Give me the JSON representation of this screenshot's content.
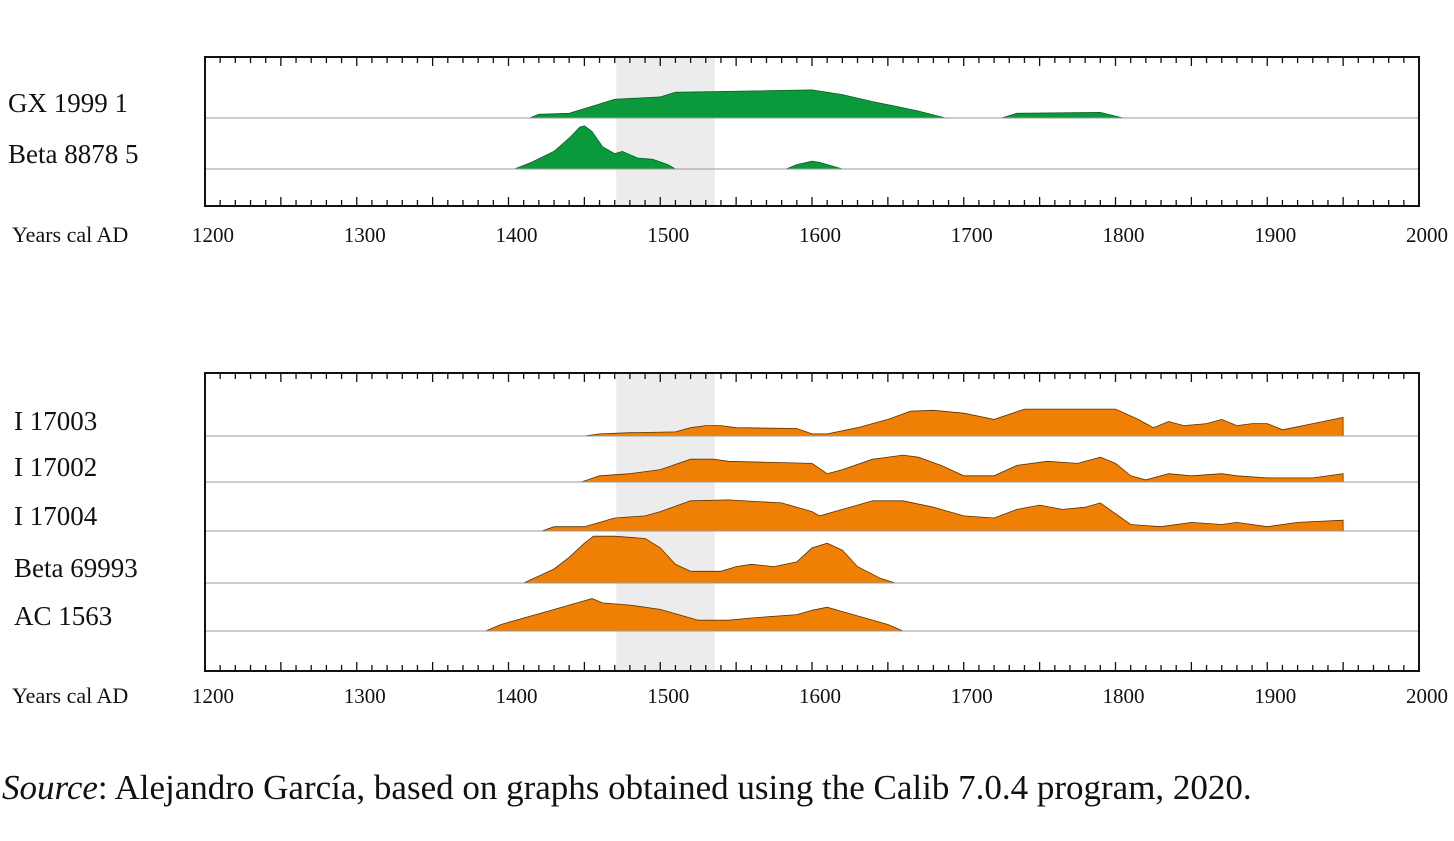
{
  "chart_data": [
    {
      "type": "area",
      "xlabel": "Years cal AD",
      "xlim": [
        1200,
        2000
      ],
      "x_ticks": [
        "1200",
        "1300",
        "1400",
        "1500",
        "1600",
        "1700",
        "1800",
        "1900",
        "2000"
      ],
      "highlight_range": [
        1471,
        1536
      ],
      "colors": {
        "fill": "#0a9a3c",
        "stroke": "#0b5e24",
        "highlight": "#ececec"
      },
      "series": [
        {
          "name": "GX 1999 1",
          "points": [
            [
              1414,
              0.0
            ],
            [
              1420,
              0.08
            ],
            [
              1440,
              0.1
            ],
            [
              1460,
              0.3
            ],
            [
              1470,
              0.4
            ],
            [
              1500,
              0.45
            ],
            [
              1510,
              0.55
            ],
            [
              1600,
              0.6
            ],
            [
              1620,
              0.5
            ],
            [
              1640,
              0.35
            ],
            [
              1670,
              0.15
            ],
            [
              1688,
              0.0
            ],
            [
              1700,
              0.0
            ],
            [
              1725,
              0.0
            ],
            [
              1735,
              0.1
            ],
            [
              1790,
              0.12
            ],
            [
              1805,
              0.0
            ]
          ]
        },
        {
          "name": "Beta 8878  5",
          "points": [
            [
              1404,
              0.0
            ],
            [
              1415,
              0.15
            ],
            [
              1430,
              0.4
            ],
            [
              1440,
              0.7
            ],
            [
              1447,
              0.95
            ],
            [
              1450,
              0.98
            ],
            [
              1455,
              0.85
            ],
            [
              1462,
              0.5
            ],
            [
              1470,
              0.35
            ],
            [
              1475,
              0.4
            ],
            [
              1485,
              0.25
            ],
            [
              1495,
              0.22
            ],
            [
              1505,
              0.1
            ],
            [
              1510,
              0.0
            ],
            [
              1583,
              0.0
            ],
            [
              1590,
              0.1
            ],
            [
              1600,
              0.18
            ],
            [
              1605,
              0.15
            ],
            [
              1620,
              0.0
            ]
          ]
        }
      ]
    },
    {
      "type": "area",
      "xlabel": "Years cal AD",
      "xlim": [
        1200,
        2000
      ],
      "x_ticks": [
        "1200",
        "1300",
        "1400",
        "1500",
        "1600",
        "1700",
        "1800",
        "1900",
        "2000"
      ],
      "highlight_range": [
        1471,
        1536
      ],
      "colors": {
        "fill": "#f07f05",
        "stroke": "#5a3203",
        "highlight": "#ececec"
      },
      "series": [
        {
          "name": "I 17003",
          "points": [
            [
              1450,
              0.0
            ],
            [
              1460,
              0.05
            ],
            [
              1480,
              0.08
            ],
            [
              1510,
              0.1
            ],
            [
              1520,
              0.2
            ],
            [
              1530,
              0.25
            ],
            [
              1540,
              0.25
            ],
            [
              1550,
              0.2
            ],
            [
              1590,
              0.18
            ],
            [
              1600,
              0.05
            ],
            [
              1610,
              0.05
            ],
            [
              1630,
              0.2
            ],
            [
              1650,
              0.4
            ],
            [
              1665,
              0.6
            ],
            [
              1680,
              0.62
            ],
            [
              1700,
              0.55
            ],
            [
              1720,
              0.4
            ],
            [
              1740,
              0.65
            ],
            [
              1800,
              0.65
            ],
            [
              1815,
              0.4
            ],
            [
              1825,
              0.2
            ],
            [
              1835,
              0.35
            ],
            [
              1845,
              0.25
            ],
            [
              1860,
              0.3
            ],
            [
              1870,
              0.4
            ],
            [
              1880,
              0.25
            ],
            [
              1890,
              0.3
            ],
            [
              1900,
              0.3
            ],
            [
              1910,
              0.15
            ],
            [
              1930,
              0.3
            ],
            [
              1950,
              0.45
            ],
            [
              1950,
              0.0
            ]
          ]
        },
        {
          "name": "I 17002",
          "points": [
            [
              1448,
              0.0
            ],
            [
              1460,
              0.15
            ],
            [
              1480,
              0.2
            ],
            [
              1500,
              0.3
            ],
            [
              1520,
              0.55
            ],
            [
              1535,
              0.55
            ],
            [
              1545,
              0.5
            ],
            [
              1600,
              0.45
            ],
            [
              1610,
              0.2
            ],
            [
              1620,
              0.3
            ],
            [
              1640,
              0.55
            ],
            [
              1660,
              0.65
            ],
            [
              1670,
              0.6
            ],
            [
              1685,
              0.4
            ],
            [
              1700,
              0.15
            ],
            [
              1720,
              0.15
            ],
            [
              1735,
              0.4
            ],
            [
              1755,
              0.5
            ],
            [
              1775,
              0.45
            ],
            [
              1790,
              0.6
            ],
            [
              1800,
              0.45
            ],
            [
              1810,
              0.15
            ],
            [
              1820,
              0.05
            ],
            [
              1835,
              0.2
            ],
            [
              1850,
              0.15
            ],
            [
              1870,
              0.2
            ],
            [
              1880,
              0.15
            ],
            [
              1900,
              0.1
            ],
            [
              1930,
              0.1
            ],
            [
              1950,
              0.2
            ],
            [
              1950,
              0.0
            ]
          ]
        },
        {
          "name": "I 17004",
          "points": [
            [
              1422,
              0.0
            ],
            [
              1430,
              0.1
            ],
            [
              1450,
              0.1
            ],
            [
              1460,
              0.2
            ],
            [
              1470,
              0.3
            ],
            [
              1490,
              0.35
            ],
            [
              1500,
              0.45
            ],
            [
              1520,
              0.7
            ],
            [
              1545,
              0.72
            ],
            [
              1580,
              0.65
            ],
            [
              1600,
              0.45
            ],
            [
              1605,
              0.35
            ],
            [
              1625,
              0.55
            ],
            [
              1640,
              0.7
            ],
            [
              1660,
              0.7
            ],
            [
              1680,
              0.55
            ],
            [
              1700,
              0.35
            ],
            [
              1720,
              0.3
            ],
            [
              1735,
              0.5
            ],
            [
              1750,
              0.6
            ],
            [
              1765,
              0.5
            ],
            [
              1780,
              0.55
            ],
            [
              1790,
              0.65
            ],
            [
              1800,
              0.4
            ],
            [
              1810,
              0.15
            ],
            [
              1830,
              0.1
            ],
            [
              1850,
              0.2
            ],
            [
              1870,
              0.15
            ],
            [
              1880,
              0.2
            ],
            [
              1900,
              0.1
            ],
            [
              1920,
              0.2
            ],
            [
              1950,
              0.25
            ],
            [
              1950,
              0.0
            ]
          ]
        },
        {
          "name": "Beta 69993",
          "points": [
            [
              1410,
              0.0
            ],
            [
              1420,
              0.15
            ],
            [
              1430,
              0.3
            ],
            [
              1440,
              0.55
            ],
            [
              1450,
              0.85
            ],
            [
              1456,
              1.0
            ],
            [
              1470,
              1.0
            ],
            [
              1490,
              0.95
            ],
            [
              1500,
              0.75
            ],
            [
              1510,
              0.4
            ],
            [
              1520,
              0.25
            ],
            [
              1540,
              0.25
            ],
            [
              1550,
              0.35
            ],
            [
              1560,
              0.4
            ],
            [
              1575,
              0.35
            ],
            [
              1590,
              0.45
            ],
            [
              1600,
              0.75
            ],
            [
              1610,
              0.85
            ],
            [
              1620,
              0.7
            ],
            [
              1630,
              0.35
            ],
            [
              1645,
              0.1
            ],
            [
              1655,
              0.0
            ]
          ]
        },
        {
          "name": "AC 1563",
          "points": [
            [
              1385,
              0.0
            ],
            [
              1395,
              0.15
            ],
            [
              1410,
              0.3
            ],
            [
              1425,
              0.45
            ],
            [
              1440,
              0.6
            ],
            [
              1455,
              0.75
            ],
            [
              1462,
              0.65
            ],
            [
              1480,
              0.6
            ],
            [
              1500,
              0.5
            ],
            [
              1515,
              0.35
            ],
            [
              1525,
              0.25
            ],
            [
              1545,
              0.25
            ],
            [
              1560,
              0.3
            ],
            [
              1590,
              0.38
            ],
            [
              1600,
              0.48
            ],
            [
              1610,
              0.55
            ],
            [
              1620,
              0.45
            ],
            [
              1635,
              0.3
            ],
            [
              1650,
              0.15
            ],
            [
              1660,
              0.0
            ]
          ]
        }
      ]
    }
  ],
  "source": {
    "prefix": "Source",
    "text": ": Alejandro García, based on graphs obtained using the Calib 7.0.4 program, 2020."
  }
}
